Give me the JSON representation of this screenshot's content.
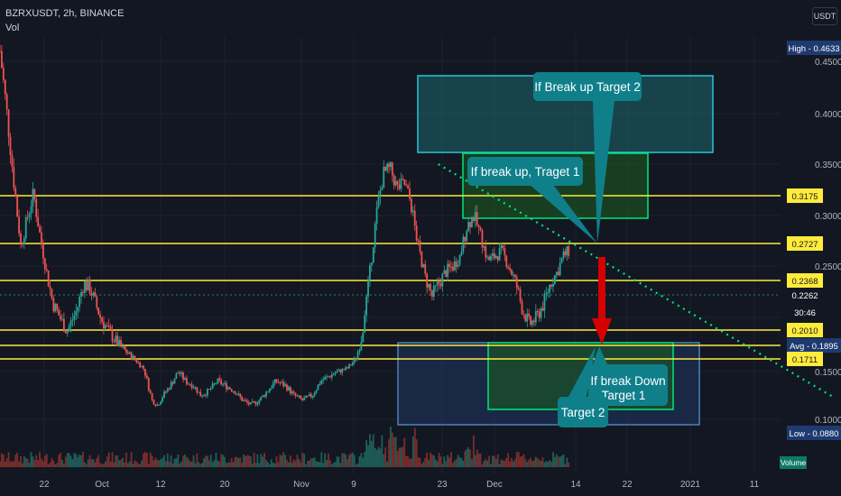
{
  "header": {
    "symbol_line": "BZRXUSDT, 2h, BINANCE",
    "indicator": "Vol",
    "currency_button": "USDT"
  },
  "colors": {
    "background": "#131722",
    "up_candle": "#26a69a",
    "down_candle": "#ef5350",
    "level_line": "#ffeb3b",
    "trend_line": "#00e676",
    "target_box_top": "#1e7b7d",
    "target_box_green": "#1b5e20",
    "target_box_bottom": "#1f3763",
    "callout": "#0f7f8a",
    "arrow": "#d50000"
  },
  "chart_data": {
    "type": "candlestick",
    "title": "BZRXUSDT, 2h, BINANCE",
    "x_ticks": [
      "22",
      "Oct",
      "12",
      "20",
      "Nov",
      "9",
      "23",
      "Dec",
      "14",
      "22",
      "2021",
      "11"
    ],
    "y_ticks": [
      "0.4500",
      "0.4000",
      "0.3500",
      "0.3000",
      "0.2500",
      "0.1500",
      "0.1000"
    ],
    "ylim": [
      0.08,
      0.47
    ],
    "price_path": [
      [
        0,
        0.46
      ],
      [
        0.5,
        0.4
      ],
      [
        1,
        0.33
      ],
      [
        1.5,
        0.27
      ],
      [
        2,
        0.3
      ],
      [
        2.4,
        0.32
      ],
      [
        3,
        0.27
      ],
      [
        3.4,
        0.24
      ],
      [
        3.8,
        0.22
      ],
      [
        4.3,
        0.21
      ],
      [
        4.8,
        0.2
      ],
      [
        5.5,
        0.215
      ],
      [
        6,
        0.235
      ],
      [
        6.5,
        0.23
      ],
      [
        7.2,
        0.21
      ],
      [
        7.8,
        0.2
      ],
      [
        8.5,
        0.19
      ],
      [
        9.1,
        0.18
      ],
      [
        9.7,
        0.17
      ],
      [
        10.3,
        0.155
      ],
      [
        10.9,
        0.12
      ],
      [
        11.3,
        0.115
      ],
      [
        11.7,
        0.125
      ],
      [
        12.2,
        0.135
      ],
      [
        12.8,
        0.15
      ],
      [
        13.3,
        0.14
      ],
      [
        13.9,
        0.135
      ],
      [
        14.4,
        0.125
      ],
      [
        15,
        0.13
      ],
      [
        15.6,
        0.14
      ],
      [
        16.2,
        0.135
      ],
      [
        16.8,
        0.13
      ],
      [
        17.4,
        0.12
      ],
      [
        18,
        0.115
      ],
      [
        18.6,
        0.12
      ],
      [
        19.2,
        0.13
      ],
      [
        19.8,
        0.14
      ],
      [
        20.5,
        0.135
      ],
      [
        21.1,
        0.125
      ],
      [
        21.7,
        0.12
      ],
      [
        22.4,
        0.125
      ],
      [
        23,
        0.14
      ],
      [
        23.6,
        0.145
      ],
      [
        24.2,
        0.15
      ],
      [
        24.9,
        0.155
      ],
      [
        25.5,
        0.17
      ],
      [
        26,
        0.2
      ],
      [
        26.5,
        0.24
      ],
      [
        27,
        0.3
      ],
      [
        27.5,
        0.34
      ],
      [
        28,
        0.345
      ],
      [
        28.5,
        0.325
      ],
      [
        29,
        0.33
      ],
      [
        29.5,
        0.31
      ],
      [
        30,
        0.27
      ],
      [
        30.5,
        0.24
      ],
      [
        31,
        0.225
      ],
      [
        31.5,
        0.235
      ],
      [
        32,
        0.245
      ],
      [
        32.5,
        0.25
      ],
      [
        33,
        0.26
      ],
      [
        33.5,
        0.29
      ],
      [
        34,
        0.3
      ],
      [
        34.5,
        0.28
      ],
      [
        35,
        0.255
      ],
      [
        35.5,
        0.26
      ],
      [
        36,
        0.265
      ],
      [
        36.5,
        0.25
      ],
      [
        37,
        0.235
      ],
      [
        37.5,
        0.215
      ],
      [
        38,
        0.205
      ],
      [
        38.5,
        0.21
      ],
      [
        39,
        0.22
      ],
      [
        39.5,
        0.235
      ],
      [
        40,
        0.245
      ],
      [
        40.4,
        0.26
      ],
      [
        40.8,
        0.265
      ]
    ],
    "horizontal_levels": [
      {
        "price": 0.3175,
        "label": "0.3175"
      },
      {
        "price": 0.2727,
        "label": "0.2727"
      },
      {
        "price": 0.2368,
        "label": "0.2368"
      },
      {
        "price": 0.201,
        "label": "0.2010"
      },
      {
        "price": 0.1895,
        "label": "Avg - 0.1895"
      },
      {
        "price": 0.1711,
        "label": "0.1711"
      }
    ],
    "price_labels": {
      "high": "High - 0.4633",
      "low": "Low - 0.0880",
      "current": "0.2262",
      "countdown": "30:46",
      "current_price": 0.2262,
      "high_price": 0.4633,
      "low_price": 0.088
    },
    "trendline": {
      "from": [
        29.5,
        0.35
      ],
      "to": [
        56,
        0.13
      ]
    },
    "annotations": [
      {
        "text": "If Break up Target 2",
        "kind": "callout"
      },
      {
        "text": "If break up, Traget 1",
        "kind": "callout"
      },
      {
        "text": "If break Down Target 1",
        "kind": "callout"
      },
      {
        "text": "Target 2",
        "kind": "callout"
      }
    ],
    "volume_label": "Volume",
    "grid": true
  }
}
